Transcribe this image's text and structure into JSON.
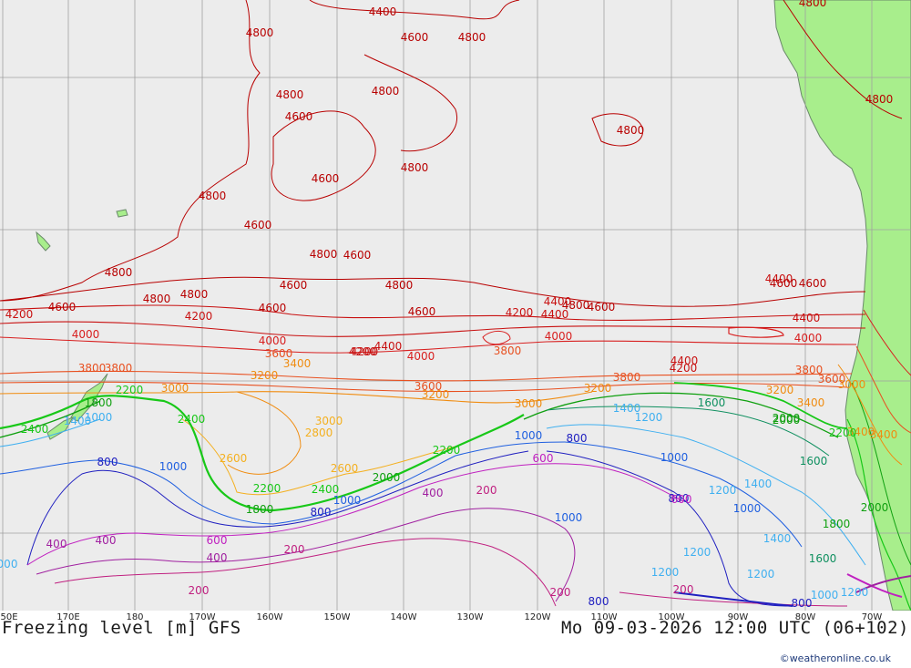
{
  "title_left": "Freezing level [m] GFS",
  "title_right": "Mo 09-03-2026 12:00 UTC (06+102)",
  "credit": "©weatheronline.co.uk",
  "longitude_labels": [
    "50E",
    "170E",
    "180",
    "170W",
    "160W",
    "150W",
    "140W",
    "130W",
    "120W",
    "110W",
    "100W",
    "90W",
    "80W",
    "70W"
  ],
  "colors": {
    "sea": "#ececec",
    "land": "#a8ee8c",
    "grid": "#a0a0a0",
    "c4800": "#b80000",
    "c4400": "#c81010",
    "c4000": "#d82020",
    "c3600": "#e85020",
    "c3200": "#f08c10",
    "c2800": "#f4b020",
    "c2400": "#18c818",
    "c2000": "#10a010",
    "c1600": "#109060",
    "c1400": "#40b0f0",
    "c1000": "#2060e0",
    "c800": "#2020c0",
    "c600": "#c020c0",
    "c400": "#a020a0",
    "c200": "#c02080"
  },
  "contour_labels": [
    {
      "text": "4400",
      "c": "c4800"
    },
    {
      "text": "4800",
      "c": "c4800"
    },
    {
      "text": "4600",
      "c": "c4800"
    },
    {
      "text": "4800",
      "c": "c4800"
    },
    {
      "text": "4800",
      "c": "c4800"
    },
    {
      "text": "4800",
      "c": "c4800"
    },
    {
      "text": "4800",
      "c": "c4800"
    },
    {
      "text": "4600",
      "c": "c4800"
    },
    {
      "text": "4800",
      "c": "c4800"
    },
    {
      "text": "4800",
      "c": "c4800"
    },
    {
      "text": "4600",
      "c": "c4800"
    },
    {
      "text": "4800",
      "c": "c4800"
    },
    {
      "text": "4800",
      "c": "c4800"
    },
    {
      "text": "4600",
      "c": "c4800"
    },
    {
      "text": "4800",
      "c": "c4800"
    },
    {
      "text": "4800",
      "c": "c4800"
    },
    {
      "text": "4600",
      "c": "c4800"
    },
    {
      "text": "4800",
      "c": "c4800"
    },
    {
      "text": "4800",
      "c": "c4800"
    },
    {
      "text": "4600",
      "c": "c4800"
    },
    {
      "text": "4600",
      "c": "c4800"
    },
    {
      "text": "4400",
      "c": "c4400"
    },
    {
      "text": "4600",
      "c": "c4800"
    },
    {
      "text": "4400",
      "c": "c4400"
    },
    {
      "text": "4600",
      "c": "c4800"
    },
    {
      "text": "4200",
      "c": "c4400"
    },
    {
      "text": "4400",
      "c": "c4400"
    },
    {
      "text": "4600",
      "c": "c4800"
    },
    {
      "text": "4800",
      "c": "c4800"
    },
    {
      "text": "4600",
      "c": "c4800"
    },
    {
      "text": "4400",
      "c": "c4400"
    },
    {
      "text": "4800",
      "c": "c4800"
    },
    {
      "text": "4200",
      "c": "c4400"
    },
    {
      "text": "4600",
      "c": "c4800"
    },
    {
      "text": "4200",
      "c": "c4400"
    },
    {
      "text": "4200",
      "c": "c4400"
    },
    {
      "text": "4000",
      "c": "c4000"
    },
    {
      "text": "4000",
      "c": "c4000"
    },
    {
      "text": "4000",
      "c": "c4000"
    },
    {
      "text": "4000",
      "c": "c4000"
    },
    {
      "text": "3600",
      "c": "c3600"
    },
    {
      "text": "4200",
      "c": "c4400"
    },
    {
      "text": "4400",
      "c": "c4400"
    },
    {
      "text": "3400",
      "c": "c3200"
    },
    {
      "text": "4000",
      "c": "c4000"
    },
    {
      "text": "3800",
      "c": "c3600"
    },
    {
      "text": "3800",
      "c": "c3600"
    },
    {
      "text": "4400",
      "c": "c4400"
    },
    {
      "text": "4200",
      "c": "c4400"
    },
    {
      "text": "3800",
      "c": "c3600"
    },
    {
      "text": "3800",
      "c": "c3600"
    },
    {
      "text": "3600",
      "c": "c3600"
    },
    {
      "text": "3600",
      "c": "c3600"
    },
    {
      "text": "3200",
      "c": "c3200"
    },
    {
      "text": "3200",
      "c": "c3200"
    },
    {
      "text": "3800",
      "c": "c3600"
    },
    {
      "text": "3200",
      "c": "c3200"
    },
    {
      "text": "3000",
      "c": "c3200"
    },
    {
      "text": "3000",
      "c": "c3200"
    },
    {
      "text": "3200",
      "c": "c3200"
    },
    {
      "text": "3400",
      "c": "c3200"
    },
    {
      "text": "3400",
      "c": "c3200"
    },
    {
      "text": "3000",
      "c": "c3200"
    },
    {
      "text": "2200",
      "c": "c2400"
    },
    {
      "text": "2400",
      "c": "c2400"
    },
    {
      "text": "1400",
      "c": "c1400"
    },
    {
      "text": "1000",
      "c": "c1400"
    },
    {
      "text": "2400",
      "c": "c2400"
    },
    {
      "text": "3000",
      "c": "c2800"
    },
    {
      "text": "2800",
      "c": "c2800"
    },
    {
      "text": "2600",
      "c": "c2800"
    },
    {
      "text": "2600",
      "c": "c2800"
    },
    {
      "text": "1800",
      "c": "c2000"
    },
    {
      "text": "1400",
      "c": "c1400"
    },
    {
      "text": "1200",
      "c": "c1400"
    },
    {
      "text": "1600",
      "c": "c1600"
    },
    {
      "text": "2000",
      "c": "c2000"
    },
    {
      "text": "1600",
      "c": "c1600"
    },
    {
      "text": "2200",
      "c": "c2400"
    },
    {
      "text": "1000",
      "c": "c1000"
    },
    {
      "text": "800",
      "c": "c800"
    },
    {
      "text": "1000",
      "c": "c1000"
    },
    {
      "text": "2000",
      "c": "c2000"
    },
    {
      "text": "600",
      "c": "c600"
    },
    {
      "text": "800",
      "c": "c800"
    },
    {
      "text": "1000",
      "c": "c1000"
    },
    {
      "text": "2200",
      "c": "c2400"
    },
    {
      "text": "2400",
      "c": "c2400"
    },
    {
      "text": "1000",
      "c": "c1000"
    },
    {
      "text": "1800",
      "c": "c2000"
    },
    {
      "text": "800",
      "c": "c800"
    },
    {
      "text": "400",
      "c": "c400"
    },
    {
      "text": "200",
      "c": "c200"
    },
    {
      "text": "400",
      "c": "c400"
    },
    {
      "text": "600",
      "c": "c600"
    },
    {
      "text": "800",
      "c": "c800"
    },
    {
      "text": "1200",
      "c": "c1400"
    },
    {
      "text": "1400",
      "c": "c1400"
    },
    {
      "text": "1000",
      "c": "c1000"
    },
    {
      "text": "2000",
      "c": "c2000"
    },
    {
      "text": "1800",
      "c": "c2000"
    },
    {
      "text": "400",
      "c": "c400"
    },
    {
      "text": "200",
      "c": "c200"
    },
    {
      "text": "600",
      "c": "c600"
    },
    {
      "text": "400",
      "c": "c400"
    },
    {
      "text": "200",
      "c": "c200"
    },
    {
      "text": "1400",
      "c": "c1400"
    },
    {
      "text": "1200",
      "c": "c1400"
    },
    {
      "text": "1600",
      "c": "c1600"
    },
    {
      "text": "1200",
      "c": "c1400"
    },
    {
      "text": "1200",
      "c": "c1400"
    },
    {
      "text": "1000",
      "c": "c1000"
    },
    {
      "text": "200",
      "c": "c200"
    },
    {
      "text": "200",
      "c": "c200"
    },
    {
      "text": "800",
      "c": "c800"
    },
    {
      "text": "800",
      "c": "c800"
    },
    {
      "text": "1000",
      "c": "c1400"
    },
    {
      "text": "1200",
      "c": "c1400"
    },
    {
      "text": "000",
      "c": "c1400"
    },
    {
      "text": "2200",
      "c": "c2400"
    },
    {
      "text": "3400",
      "c": "c3200"
    },
    {
      "text": "2000",
      "c": "c2000"
    }
  ]
}
